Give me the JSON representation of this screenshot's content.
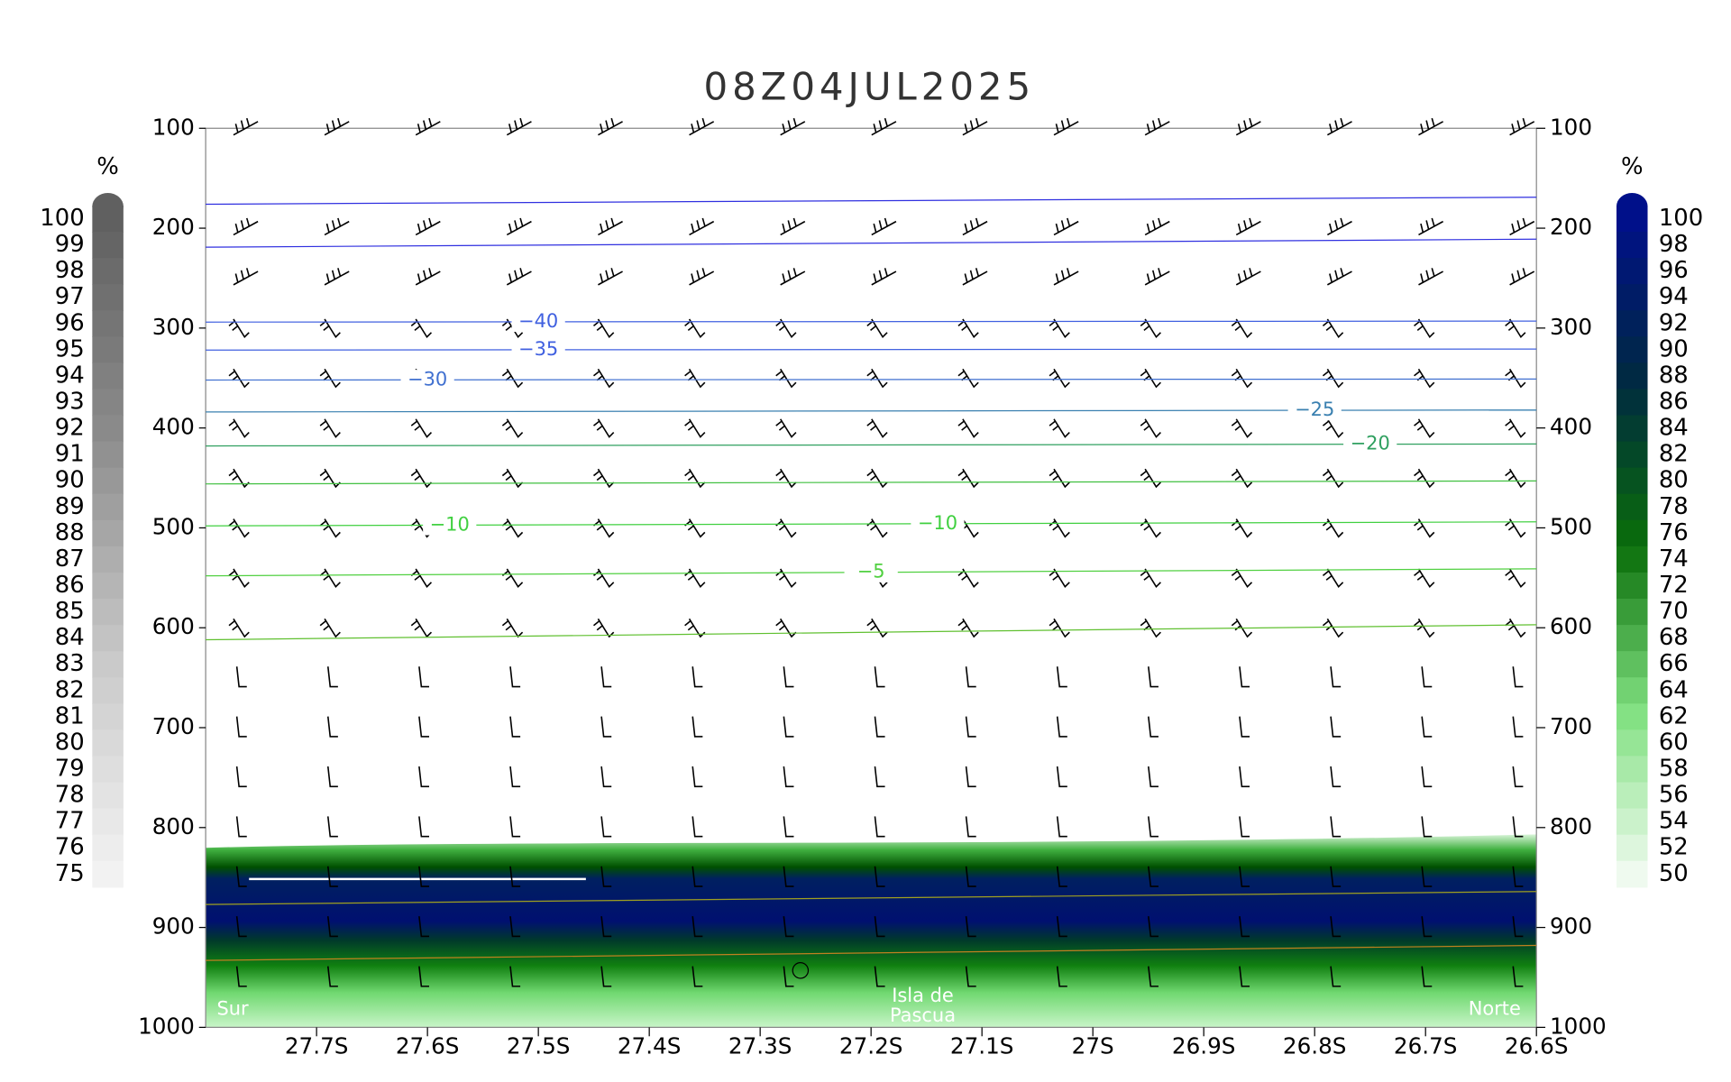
{
  "chart_data": {
    "type": "cross-section",
    "title": "08Z04JUL2025",
    "xlim": [
      27.8,
      26.6
    ],
    "xticks": [
      {
        "value": 27.7,
        "label": "27.7S"
      },
      {
        "value": 27.6,
        "label": "27.6S"
      },
      {
        "value": 27.5,
        "label": "27.5S"
      },
      {
        "value": 27.4,
        "label": "27.4S"
      },
      {
        "value": 27.3,
        "label": "27.3S"
      },
      {
        "value": 27.2,
        "label": "27.2S"
      },
      {
        "value": 27.1,
        "label": "27.1S"
      },
      {
        "value": 27,
        "label": "27S"
      },
      {
        "value": 26.9,
        "label": "26.9S"
      },
      {
        "value": 26.8,
        "label": "26.8S"
      },
      {
        "value": 26.7,
        "label": "26.7S"
      },
      {
        "value": 26.6,
        "label": "26.6S"
      }
    ],
    "ylim": [
      1000,
      100
    ],
    "yticks": [
      100,
      200,
      300,
      400,
      500,
      600,
      700,
      800,
      900,
      1000
    ],
    "contours": [
      {
        "color": "#3030e0",
        "pressure": [
          176,
          169
        ]
      },
      {
        "color": "#3030e0",
        "pressure": [
          219,
          211
        ]
      },
      {
        "color": "#4060e0",
        "level": {
          "value": -40,
          "label": "−40"
        },
        "pressure": [
          294,
          293
        ]
      },
      {
        "color": "#4060e0",
        "level": {
          "value": -35,
          "label": "−35"
        },
        "pressure": [
          322,
          321
        ]
      },
      {
        "color": "#4070d0",
        "level": {
          "value": -30,
          "label": "−30"
        },
        "pressure": [
          352,
          351
        ]
      },
      {
        "color": "#3a80b0",
        "level": {
          "value": -25,
          "label": "−25"
        },
        "pressure": [
          384,
          382
        ]
      },
      {
        "color": "#30a060",
        "level": {
          "value": -20,
          "label": "−20"
        },
        "pressure": [
          418,
          416
        ]
      },
      {
        "color": "#40c040",
        "pressure": [
          456,
          453
        ]
      },
      {
        "color": "#40d040",
        "level": {
          "value": -10,
          "label": "−10"
        },
        "pressure": [
          498,
          494
        ]
      },
      {
        "color": "#50d040",
        "level": {
          "value": -5,
          "label": "−5"
        },
        "pressure": [
          548,
          541
        ]
      },
      {
        "color": "#60c030",
        "pressure": [
          612,
          597
        ]
      },
      {
        "color": "#a0a020",
        "pressure": [
          877,
          864
        ]
      },
      {
        "color": "#c08020",
        "pressure": [
          933,
          918
        ]
      }
    ],
    "annotations": [
      "Sur",
      "Isla de",
      "Pascua",
      "Norte"
    ],
    "colorbars": [
      {
        "unit": "%",
        "ticks": [
          100,
          99,
          98,
          97,
          96,
          95,
          94,
          93,
          92,
          91,
          90,
          89,
          88,
          87,
          86,
          85,
          84,
          83,
          82,
          81,
          80,
          79,
          78,
          77,
          76,
          75
        ],
        "colors": [
          "#f2f2f2",
          "#c8c8c8",
          "#8c8c8c",
          "#606060"
        ]
      },
      {
        "unit": "%",
        "ticks": [
          100,
          98,
          96,
          94,
          92,
          90,
          88,
          86,
          84,
          82,
          80,
          78,
          76,
          74,
          72,
          70,
          68,
          66,
          64,
          62,
          60,
          58,
          56,
          54,
          52,
          50
        ],
        "colors": [
          "#effaef",
          "#80e080",
          "#0a6e0a",
          "#002a40",
          "#00108a"
        ]
      }
    ]
  }
}
